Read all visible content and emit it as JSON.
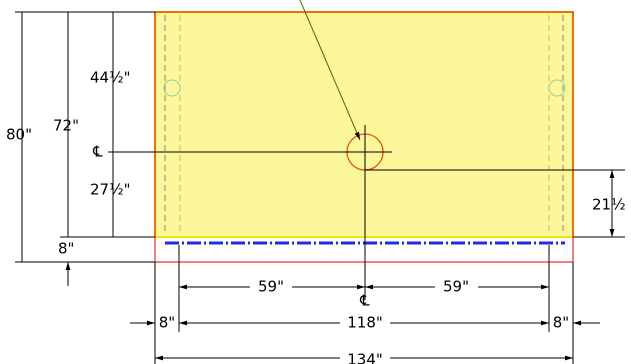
{
  "dimensions": {
    "overall_height": "80\"",
    "sheet_height": "72\"",
    "upper_height": "44½\"",
    "lower_height": "27½\"",
    "bottom_offset": "8\"",
    "right_offset": "21½",
    "left_half": "59\"",
    "right_half": "59\"",
    "span": "118\"",
    "left_margin": "8\"",
    "right_margin": "8\"",
    "overall_width": "134\""
  },
  "centerline_symbols": [
    "℄",
    "℄"
  ]
}
